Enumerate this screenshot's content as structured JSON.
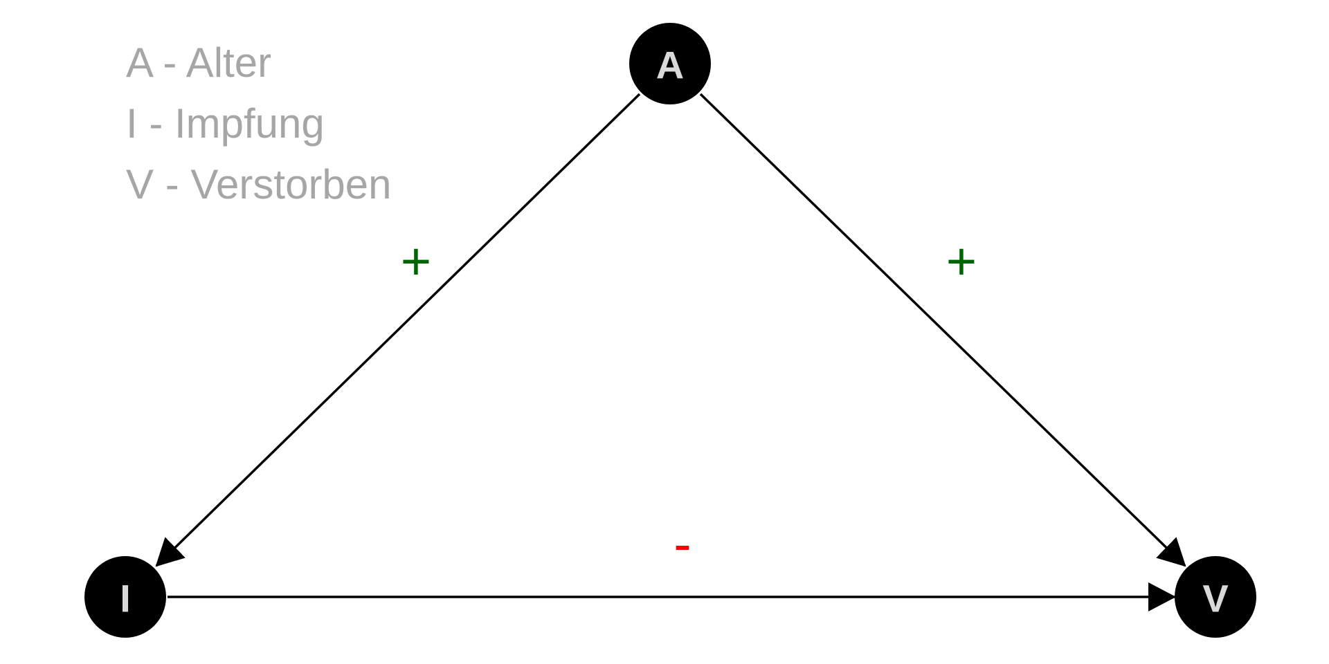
{
  "legend": [
    {
      "text": "A - Alter"
    },
    {
      "text": "I - Impfung"
    },
    {
      "text": "V - Verstorben"
    }
  ],
  "nodes": [
    {
      "id": "A",
      "label": "A"
    },
    {
      "id": "I",
      "label": "I"
    },
    {
      "id": "V",
      "label": "V"
    }
  ],
  "edges": [
    {
      "from": "A",
      "to": "I",
      "sign": "+",
      "sign_color": "#006400"
    },
    {
      "from": "A",
      "to": "V",
      "sign": "+",
      "sign_color": "#006400"
    },
    {
      "from": "I",
      "to": "V",
      "sign": "-",
      "sign_color": "#ff0000"
    }
  ],
  "colors": {
    "node_fill": "#000000",
    "node_label": "#d9d9d9",
    "legend_text": "#a6a6a6",
    "edge": "#000000"
  }
}
